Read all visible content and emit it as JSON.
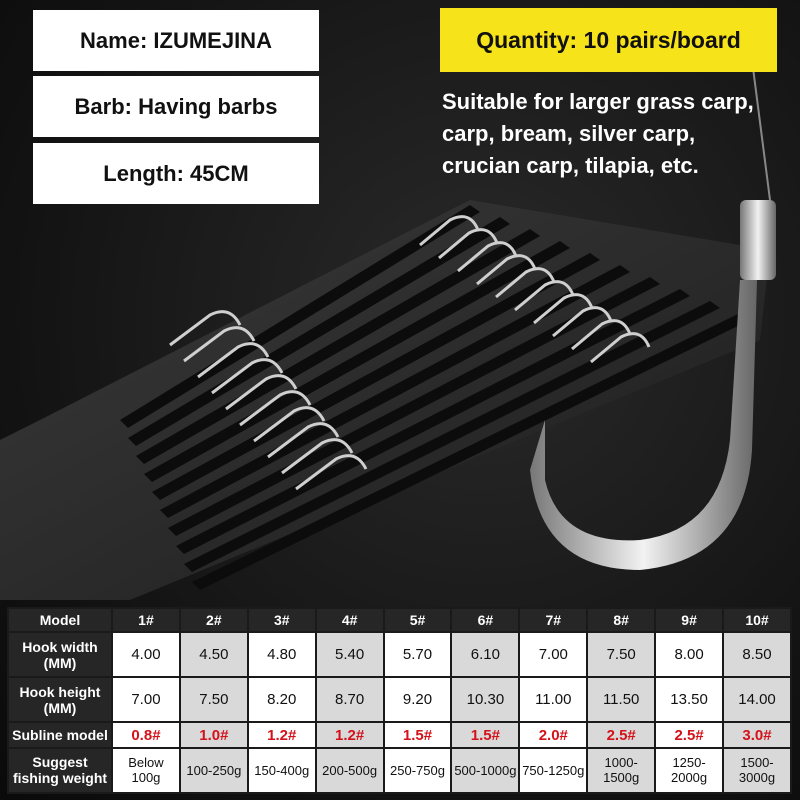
{
  "info": {
    "name": "Name: IZUMEJINA",
    "barb": "Barb: Having barbs",
    "length": "Length: 45CM",
    "quantity": "Quantity: 10 pairs/board",
    "description": [
      "Suitable for larger grass carp,",
      "carp, bream, silver carp,",
      "crucian carp, tilapia, etc."
    ]
  },
  "colors": {
    "quantity_bg": "#f7e31a",
    "subline_text": "#d4121a",
    "header_bg": "#262626"
  },
  "table": {
    "header": [
      "Model",
      "1#",
      "2#",
      "3#",
      "4#",
      "5#",
      "6#",
      "7#",
      "8#",
      "9#",
      "10#"
    ],
    "rows": [
      {
        "label": "Hook width (MM)",
        "values": [
          "4.00",
          "4.50",
          "4.80",
          "5.40",
          "5.70",
          "6.10",
          "7.00",
          "7.50",
          "8.00",
          "8.50"
        ]
      },
      {
        "label": "Hook height (MM)",
        "values": [
          "7.00",
          "7.50",
          "8.20",
          "8.70",
          "9.20",
          "10.30",
          "11.00",
          "11.50",
          "13.50",
          "14.00"
        ]
      },
      {
        "label": "Subline model",
        "values": [
          "0.8#",
          "1.0#",
          "1.2#",
          "1.2#",
          "1.5#",
          "1.5#",
          "2.0#",
          "2.5#",
          "2.5#",
          "3.0#"
        ]
      },
      {
        "label": "Suggest fishing weight",
        "values": [
          "Below 100g",
          "100-250g",
          "150-400g",
          "200-500g",
          "250-750g",
          "500-1000g",
          "750-1250g",
          "1000-1500g",
          "1250-2000g",
          "1500-3000g"
        ]
      }
    ]
  }
}
